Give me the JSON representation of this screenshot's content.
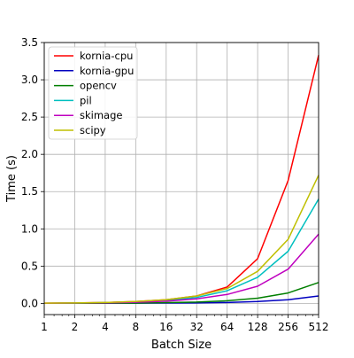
{
  "chart_data": {
    "type": "line",
    "title": "",
    "xlabel": "Batch Size",
    "ylabel": "Time (s)",
    "x_scale": "log2",
    "x": [
      1,
      2,
      4,
      8,
      16,
      32,
      64,
      128,
      256,
      512
    ],
    "x_tick_labels": [
      "1",
      "2",
      "4",
      "8",
      "16",
      "32",
      "64",
      "128",
      "256",
      "512"
    ],
    "ylim": [
      -0.15,
      3.5
    ],
    "y_ticks": [
      0.0,
      0.5,
      1.0,
      1.5,
      2.0,
      2.5,
      3.0,
      3.5
    ],
    "y_tick_labels": [
      "0.0",
      "0.5",
      "1.0",
      "1.5",
      "2.0",
      "2.5",
      "3.0",
      "3.5"
    ],
    "grid": true,
    "legend_position": "top-left",
    "series": [
      {
        "name": "kornia-cpu",
        "color": "#ff0000",
        "values": [
          0.003,
          0.006,
          0.012,
          0.025,
          0.05,
          0.1,
          0.22,
          0.6,
          1.65,
          3.33
        ]
      },
      {
        "name": "kornia-gpu",
        "color": "#0000c0",
        "values": [
          0.001,
          0.001,
          0.002,
          0.003,
          0.004,
          0.006,
          0.012,
          0.025,
          0.05,
          0.1
        ]
      },
      {
        "name": "opencv",
        "color": "#007f00",
        "values": [
          0.001,
          0.002,
          0.003,
          0.005,
          0.01,
          0.018,
          0.035,
          0.07,
          0.14,
          0.28
        ]
      },
      {
        "name": "pil",
        "color": "#00bfbf",
        "values": [
          0.002,
          0.005,
          0.01,
          0.02,
          0.04,
          0.08,
          0.17,
          0.35,
          0.7,
          1.4
        ]
      },
      {
        "name": "skimage",
        "color": "#bf00bf",
        "values": [
          0.002,
          0.004,
          0.007,
          0.015,
          0.03,
          0.06,
          0.12,
          0.23,
          0.46,
          0.93
        ]
      },
      {
        "name": "scipy",
        "color": "#bfbf00",
        "values": [
          0.003,
          0.006,
          0.012,
          0.025,
          0.05,
          0.1,
          0.2,
          0.43,
          0.86,
          1.72
        ]
      }
    ]
  }
}
